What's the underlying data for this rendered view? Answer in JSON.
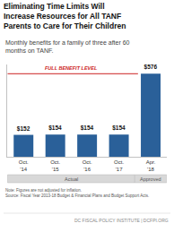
{
  "chart_data": {
    "type": "bar",
    "title": "Eliminating Time Limits Will\nIncrease Resources for All TANF\nParents to Care for Their Children",
    "subtitle": "Monthly benefits for a family of three after 60\nmonths on TANF.",
    "categories": [
      "Oct.\n'14",
      "Oct.\n'15",
      "Oct.\n'16",
      "Oct.\n'17",
      "Apr.\n'18"
    ],
    "values": [
      152,
      154,
      154,
      154,
      576
    ],
    "value_labels": [
      "$152",
      "$154",
      "$154",
      "$154",
      "$576"
    ],
    "data_labels": true,
    "color": "#2a6099",
    "ylim": [
      0,
      640
    ],
    "yticks": [],
    "tick_labels": "x",
    "grid": false,
    "reference_line": {
      "value": 576,
      "label": "FULL BENEFIT LEVEL",
      "color": "#cc2222"
    },
    "groups": [
      {
        "label": "Actual",
        "categories": [
          "Oct.\n'14",
          "Oct.\n'15",
          "Oct.\n'16",
          "Oct.\n'17"
        ]
      },
      {
        "label": "Approved",
        "categories": [
          "Apr.\n'18"
        ]
      }
    ],
    "note": "Note: Figures are not adjusted for inflation.\nSource: Fiscal Year 2013-18 Budget & Financial Plans and Budget Support Acts.",
    "footer": "DC FISCAL POLICY INSTITUTE | DCFPI.ORG"
  }
}
